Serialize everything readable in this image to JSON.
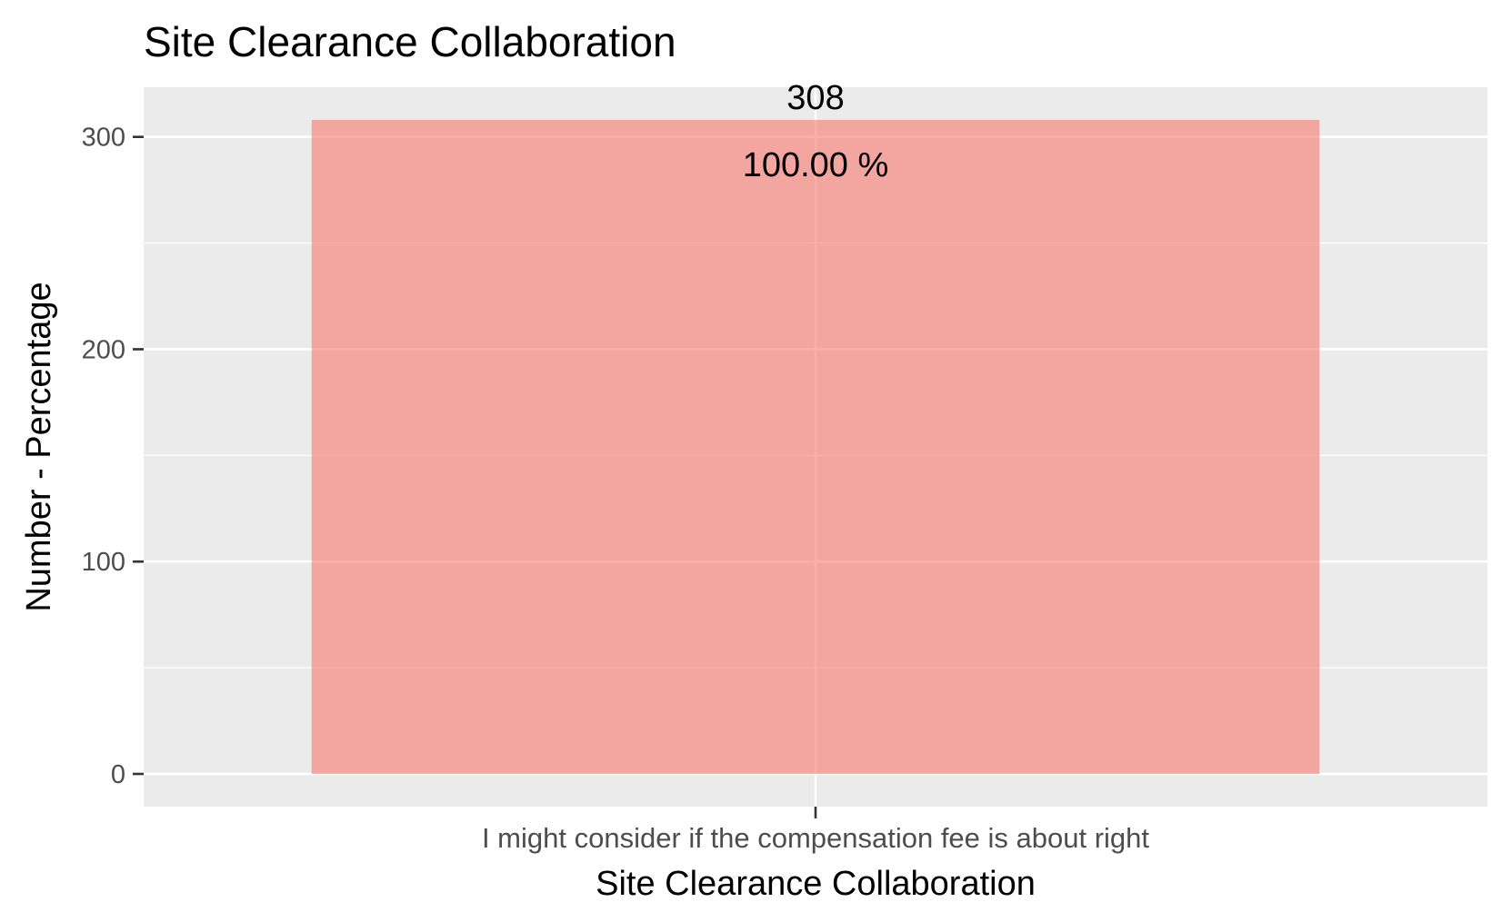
{
  "chart_data": {
    "type": "bar",
    "title": "Site Clearance Collaboration",
    "xlabel": "Site Clearance Collaboration",
    "ylabel": "Number - Percentage",
    "categories": [
      "I might consider if the compensation fee is about right"
    ],
    "values": [
      308
    ],
    "percent_labels": [
      "100.00 %"
    ],
    "count_labels": [
      "308"
    ],
    "ylim": [
      -15.4,
      323.4
    ],
    "yticks": [
      0,
      100,
      200,
      300
    ],
    "ytick_labels": [
      "0",
      "100",
      "200",
      "300"
    ],
    "grid": true,
    "legend": "none",
    "colors": {
      "bar": "#F8766D",
      "bar_opacity": 0.6,
      "panel_bg": "#EBEBEB",
      "grid": "#FFFFFF",
      "text": "#000000",
      "tick_text": "#4D4D4D",
      "tick_mark": "#333333"
    }
  }
}
